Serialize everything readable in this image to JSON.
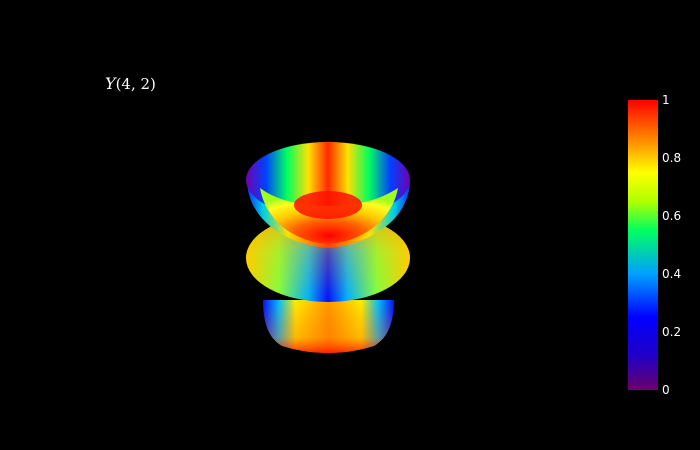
{
  "title": {
    "symbol": "Y",
    "args": "(4, 2)"
  },
  "chart_data": {
    "type": "surface",
    "title": "Y(4, 2)",
    "colorscale": {
      "name": "Jet-like",
      "stops": [
        [
          0.0,
          "#6a006a"
        ],
        [
          0.12,
          "#2000c8"
        ],
        [
          0.25,
          "#0000ff"
        ],
        [
          0.4,
          "#00a0ff"
        ],
        [
          0.55,
          "#00ff60"
        ],
        [
          0.65,
          "#b0ff00"
        ],
        [
          0.75,
          "#ffff00"
        ],
        [
          0.85,
          "#ff9600"
        ],
        [
          1.0,
          "#ff0000"
        ]
      ]
    },
    "colorbar": {
      "range": [
        0,
        1
      ],
      "ticks": [
        "0",
        "0.2",
        "0.4",
        "0.6",
        "0.8",
        "1"
      ]
    },
    "grid": false,
    "legend": "none"
  }
}
